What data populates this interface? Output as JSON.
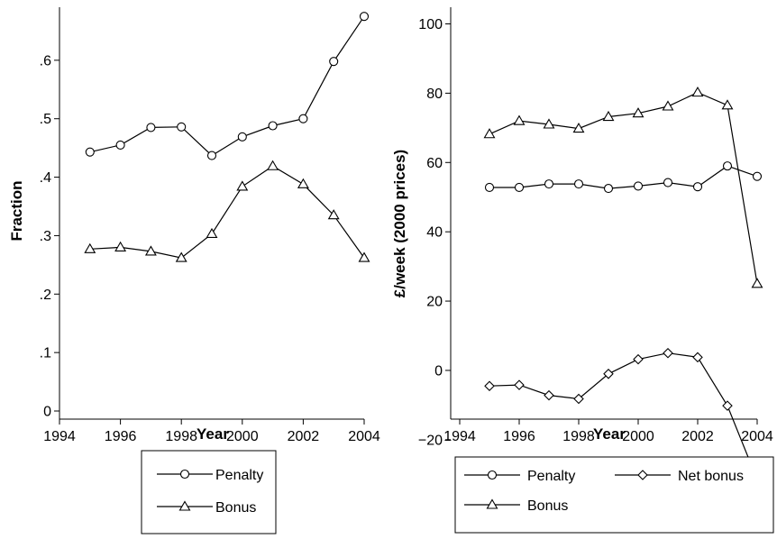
{
  "chart_data": [
    {
      "type": "line",
      "title": "",
      "xlabel": "Year",
      "ylabel": "Fraction",
      "x": [
        1995,
        1996,
        1997,
        1998,
        1999,
        2000,
        2001,
        2002,
        2003,
        2004
      ],
      "xlim": [
        1994,
        2004
      ],
      "ylim": [
        0,
        0.7
      ],
      "xticks": [
        1994,
        1996,
        1998,
        2000,
        2002,
        2004
      ],
      "xtick_labels": [
        "1994",
        "1996",
        "1998",
        "2000",
        "2002",
        "2004"
      ],
      "yticks": [
        0,
        0.1,
        0.2,
        0.3,
        0.4,
        0.5,
        0.6
      ],
      "ytick_labels": [
        "0",
        ".1",
        ".2",
        ".3",
        ".4",
        ".5",
        ".6"
      ],
      "grid": false,
      "legend_position": "bottom",
      "series": [
        {
          "name": "Penalty",
          "marker": "circle",
          "values": [
            0.443,
            0.455,
            0.485,
            0.486,
            0.437,
            0.469,
            0.488,
            0.5,
            0.598,
            0.675
          ]
        },
        {
          "name": "Bonus",
          "marker": "triangle",
          "values": [
            0.277,
            0.28,
            0.273,
            0.262,
            0.303,
            0.384,
            0.419,
            0.388,
            0.335,
            0.262
          ]
        }
      ]
    },
    {
      "type": "line",
      "title": "",
      "xlabel": "Year",
      "ylabel": "£/week (2000 prices)",
      "x": [
        1995,
        1996,
        1997,
        1998,
        1999,
        2000,
        2001,
        2002,
        2003,
        2004
      ],
      "xlim": [
        1994,
        2004
      ],
      "ylim": [
        -35,
        100
      ],
      "xticks": [
        1994,
        1996,
        1998,
        2000,
        2002,
        2004
      ],
      "xtick_labels": [
        "1994",
        "1996",
        "1998",
        "2000",
        "2002",
        "2004"
      ],
      "yticks": [
        -20,
        0,
        20,
        40,
        60,
        80,
        100
      ],
      "ytick_labels": [
        "−20",
        "0",
        "20",
        "40",
        "60",
        "80",
        "100"
      ],
      "grid": false,
      "legend_position": "bottom",
      "series": [
        {
          "name": "Penalty",
          "marker": "circle",
          "values": [
            52.8,
            52.8,
            53.8,
            53.8,
            52.5,
            53.2,
            54.2,
            53.0,
            59.0,
            56.0
          ]
        },
        {
          "name": "Bonus",
          "marker": "triangle",
          "values": [
            68.2,
            72.0,
            71.0,
            69.8,
            73.2,
            74.2,
            76.2,
            80.2,
            76.5,
            25.0
          ]
        },
        {
          "name": "Net bonus",
          "marker": "diamond",
          "values": [
            -4.5,
            -4.2,
            -7.2,
            -8.2,
            -1.0,
            3.2,
            5.0,
            3.8,
            -10.2,
            -31.5
          ]
        }
      ]
    }
  ]
}
